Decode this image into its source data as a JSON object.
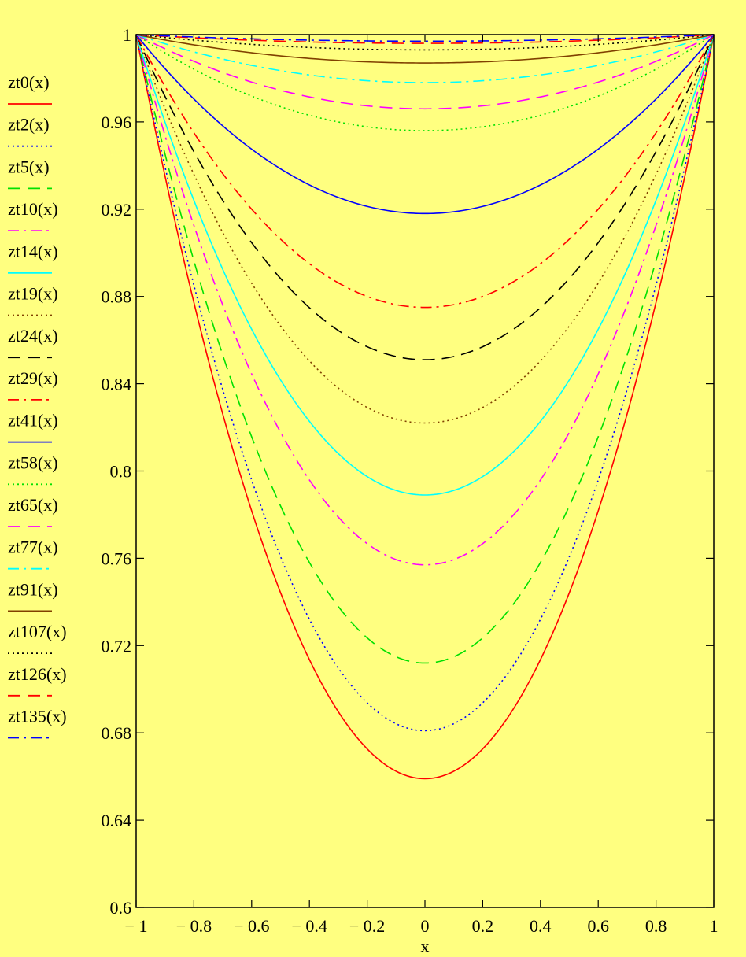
{
  "colors": {
    "background": "#ffff80",
    "axis": "#000000"
  },
  "chart_data": {
    "type": "line",
    "xlabel": "x",
    "ylabel": "",
    "xlim": [
      -1,
      1
    ],
    "ylim": [
      0.6,
      1
    ],
    "x_ticks": [
      -1,
      -0.8,
      -0.6,
      -0.4,
      -0.2,
      0,
      0.2,
      0.4,
      0.6,
      0.8,
      1
    ],
    "x_tick_labels": [
      "− 1",
      "− 0.8",
      "− 0.6",
      "− 0.4",
      "− 0.2",
      "0",
      "0.2",
      "0.4",
      "0.6",
      "0.8",
      "1"
    ],
    "y_ticks": [
      0.6,
      0.64,
      0.68,
      0.72,
      0.76,
      0.8,
      0.84,
      0.88,
      0.92,
      0.96,
      1
    ],
    "y_tick_labels": [
      "0.6",
      "0.64",
      "0.68",
      "0.72",
      "0.76",
      "0.8",
      "0.84",
      "0.88",
      "0.92",
      "0.96",
      "1"
    ],
    "grid": false,
    "legend_position": "left",
    "x": [
      -1,
      -0.9,
      -0.8,
      -0.7,
      -0.6,
      -0.5,
      -0.4,
      -0.3,
      -0.2,
      -0.1,
      0,
      0.1,
      0.2,
      0.3,
      0.4,
      0.5,
      0.6,
      0.7,
      0.8,
      0.9,
      1
    ],
    "series": [
      {
        "name": "zt0(x)",
        "color": "#ff0000",
        "dash": "solid",
        "min": 0.659
      },
      {
        "name": "zt2(x)",
        "color": "#0000ff",
        "dash": "dot",
        "min": 0.681
      },
      {
        "name": "zt5(x)",
        "color": "#00e000",
        "dash": "dash",
        "min": 0.712
      },
      {
        "name": "zt10(x)",
        "color": "#ff00ff",
        "dash": "dashdot",
        "min": 0.757
      },
      {
        "name": "zt14(x)",
        "color": "#00ffff",
        "dash": "solid",
        "min": 0.789
      },
      {
        "name": "zt19(x)",
        "color": "#804000",
        "dash": "dot",
        "min": 0.822
      },
      {
        "name": "zt24(x)",
        "color": "#000000",
        "dash": "dash",
        "min": 0.851
      },
      {
        "name": "zt29(x)",
        "color": "#ff0000",
        "dash": "dashdot",
        "min": 0.875
      },
      {
        "name": "zt41(x)",
        "color": "#0000ff",
        "dash": "solid",
        "min": 0.918
      },
      {
        "name": "zt58(x)",
        "color": "#00e000",
        "dash": "dot",
        "min": 0.956
      },
      {
        "name": "zt65(x)",
        "color": "#ff00ff",
        "dash": "dash",
        "min": 0.966
      },
      {
        "name": "zt77(x)",
        "color": "#00ffff",
        "dash": "dashdot",
        "min": 0.978
      },
      {
        "name": "zt91(x)",
        "color": "#804000",
        "dash": "solid",
        "min": 0.987
      },
      {
        "name": "zt107(x)",
        "color": "#000000",
        "dash": "dot",
        "min": 0.993
      },
      {
        "name": "zt126(x)",
        "color": "#ff0000",
        "dash": "dash",
        "min": 0.996
      },
      {
        "name": "zt135(x)",
        "color": "#0000ff",
        "dash": "dashdot",
        "min": 0.997
      }
    ]
  }
}
